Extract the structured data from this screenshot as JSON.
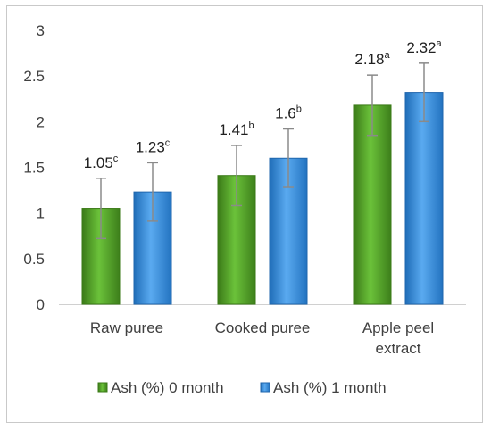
{
  "chart_data": {
    "type": "bar",
    "title": "",
    "xlabel": "",
    "ylabel": "",
    "ylim": [
      0,
      3
    ],
    "yticks": [
      "0",
      "0.5",
      "1",
      "1.5",
      "2",
      "2.5",
      "3"
    ],
    "categories": [
      [
        "Raw puree"
      ],
      [
        "Cooked puree"
      ],
      [
        "Apple peel",
        "extract"
      ]
    ],
    "series": [
      {
        "name": "Ash (%) 0 month",
        "color": "#4e9a25",
        "values": [
          1.05,
          1.41,
          2.18
        ],
        "errors": [
          0.33,
          0.33,
          0.33
        ],
        "labels": [
          "1.05",
          "1.41",
          "2.18"
        ],
        "letters": [
          "c",
          "b",
          "a"
        ]
      },
      {
        "name": "Ash (%) 1 month",
        "color": "#2f86d6",
        "values": [
          1.23,
          1.6,
          2.32
        ],
        "errors": [
          0.32,
          0.32,
          0.32
        ],
        "labels": [
          "1.23",
          "1.6",
          "2.32"
        ],
        "letters": [
          "c",
          "b",
          "a"
        ]
      }
    ],
    "grid": false,
    "legend": "bottom"
  }
}
